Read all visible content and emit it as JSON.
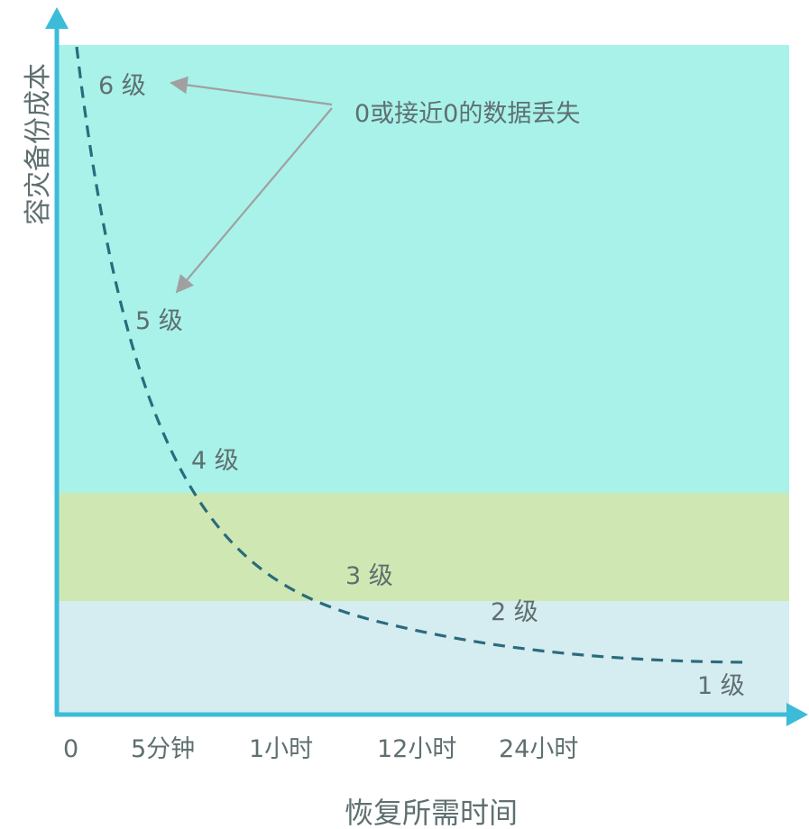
{
  "diagram": {
    "y_axis_label": "容灾备份成本",
    "x_axis_label": "恢复所需时间",
    "x_ticks": [
      "0",
      "5分钟",
      "1小时",
      "12小时",
      "24小时"
    ],
    "annotation": "0或接近0的数据丢失",
    "levels": [
      "6 级",
      "5 级",
      "4 级",
      "3 级",
      "2 级",
      "1 级"
    ],
    "colors": {
      "axis": "#3cbcd8",
      "band_high": "#a8f2ea",
      "band_mid": "#cfe8b3",
      "band_low": "#d5ecf1",
      "curve": "#2a6b7c",
      "arrow": "#a0a0a0",
      "text": "#5f6f6f"
    }
  }
}
